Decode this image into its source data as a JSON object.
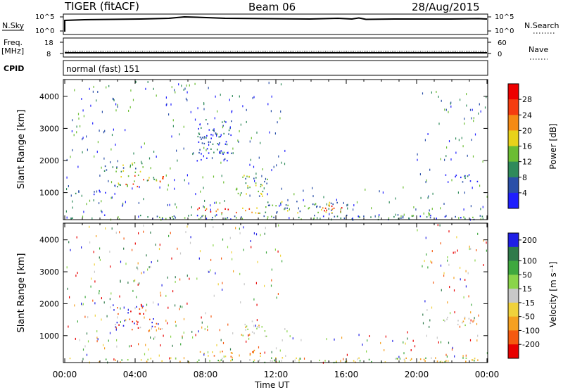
{
  "header": {
    "radar": "TIGER (fitACF)",
    "beam": "Beam 06",
    "date": "28/Aug/2015"
  },
  "top_panels": {
    "nsky_label": "N.Sky",
    "nsky_ticks": [
      "10^5",
      "10^0"
    ],
    "nsearch_label": "N.Search",
    "nsearch_ticks": [
      "10^5",
      "10^0"
    ],
    "freq_label": "Freq.",
    "freq_unit": "[MHz]",
    "freq_ticks": [
      "18",
      "8"
    ],
    "nave_label": "Nave",
    "nave_ticks": [
      "60",
      "0"
    ],
    "cpid_label": "CPID",
    "cpid_value": "normal (fast) 151"
  },
  "chart_data": [
    {
      "type": "heatmap",
      "name": "power",
      "ylabel": "Slant Range [km]",
      "yticks": [
        "1000",
        "2000",
        "3000",
        "4000"
      ],
      "ylim": [
        180,
        4500
      ],
      "xlim": [
        0,
        24
      ],
      "colorbar_label": "Power [dB]",
      "colorbar_ticks": [
        "4",
        "8",
        "12",
        "16",
        "20",
        "24",
        "28"
      ],
      "colors": [
        "#1f1fff",
        "#2a4fa8",
        "#2f8a5a",
        "#6bbd33",
        "#e8d21a",
        "#f58a14",
        "#f53c0f",
        "#ee0000"
      ],
      "regions": [
        {
          "t": [
            0.2,
            23.8
          ],
          "r": [
            180,
            330
          ],
          "level": "mixed-low"
        },
        {
          "t": [
            0.5,
            2.8
          ],
          "r": [
            960,
            1100
          ],
          "level": "low"
        },
        {
          "t": [
            2.8,
            5.6
          ],
          "r": [
            1200,
            1600
          ],
          "level": "mid-high"
        },
        {
          "t": [
            2.2,
            4.5
          ],
          "r": [
            1650,
            2000
          ],
          "level": "mid"
        },
        {
          "t": [
            7.5,
            11.2
          ],
          "r": [
            350,
            550
          ],
          "level": "high"
        },
        {
          "t": [
            9.7,
            11.5
          ],
          "r": [
            900,
            1600
          ],
          "level": "mid"
        },
        {
          "t": [
            11.0,
            15.5
          ],
          "r": [
            380,
            750
          ],
          "level": "mid"
        },
        {
          "t": [
            14.5,
            15.8
          ],
          "r": [
            380,
            700
          ],
          "level": "high"
        },
        {
          "t": [
            21.5,
            23.6
          ],
          "r": [
            1350,
            1600
          ],
          "level": "low"
        },
        {
          "t": [
            7.5,
            9.5
          ],
          "r": [
            2000,
            3300
          ],
          "level": "low"
        }
      ]
    },
    {
      "type": "heatmap",
      "name": "velocity",
      "xlabel": "Time UT",
      "xticks": [
        "00:00",
        "04:00",
        "08:00",
        "12:00",
        "16:00",
        "20:00",
        "00:00"
      ],
      "ylabel": "Slant Range [km]",
      "yticks": [
        "1000",
        "2000",
        "3000",
        "4000"
      ],
      "ylim": [
        180,
        4500
      ],
      "xlim": [
        0,
        24
      ],
      "colorbar_label": "Velocity [m s⁻¹]",
      "colorbar_ticks": [
        "200",
        "100",
        "50",
        "15",
        "-15",
        "-50",
        "-100",
        "-200"
      ],
      "colors": [
        "#1f1fe6",
        "#2f7a4a",
        "#3ea83e",
        "#8ad44a",
        "#c8c8c8",
        "#f0d23c",
        "#f5a020",
        "#f55a10",
        "#e80000"
      ],
      "regions": [
        {
          "t": [
            0.2,
            23.8
          ],
          "r": [
            180,
            330
          ],
          "level": "mixed"
        },
        {
          "t": [
            2.8,
            5.6
          ],
          "r": [
            1200,
            1550
          ],
          "level": "mixed-red-blue"
        },
        {
          "t": [
            2.5,
            4.5
          ],
          "r": [
            1700,
            2000
          ],
          "level": "red"
        },
        {
          "t": [
            7.5,
            11.2
          ],
          "r": [
            350,
            560
          ],
          "level": "orange"
        },
        {
          "t": [
            10.0,
            11.5
          ],
          "r": [
            1000,
            1500
          ],
          "level": "grey"
        },
        {
          "t": [
            21.5,
            23.6
          ],
          "r": [
            1350,
            1600
          ],
          "level": "grey"
        }
      ]
    }
  ]
}
